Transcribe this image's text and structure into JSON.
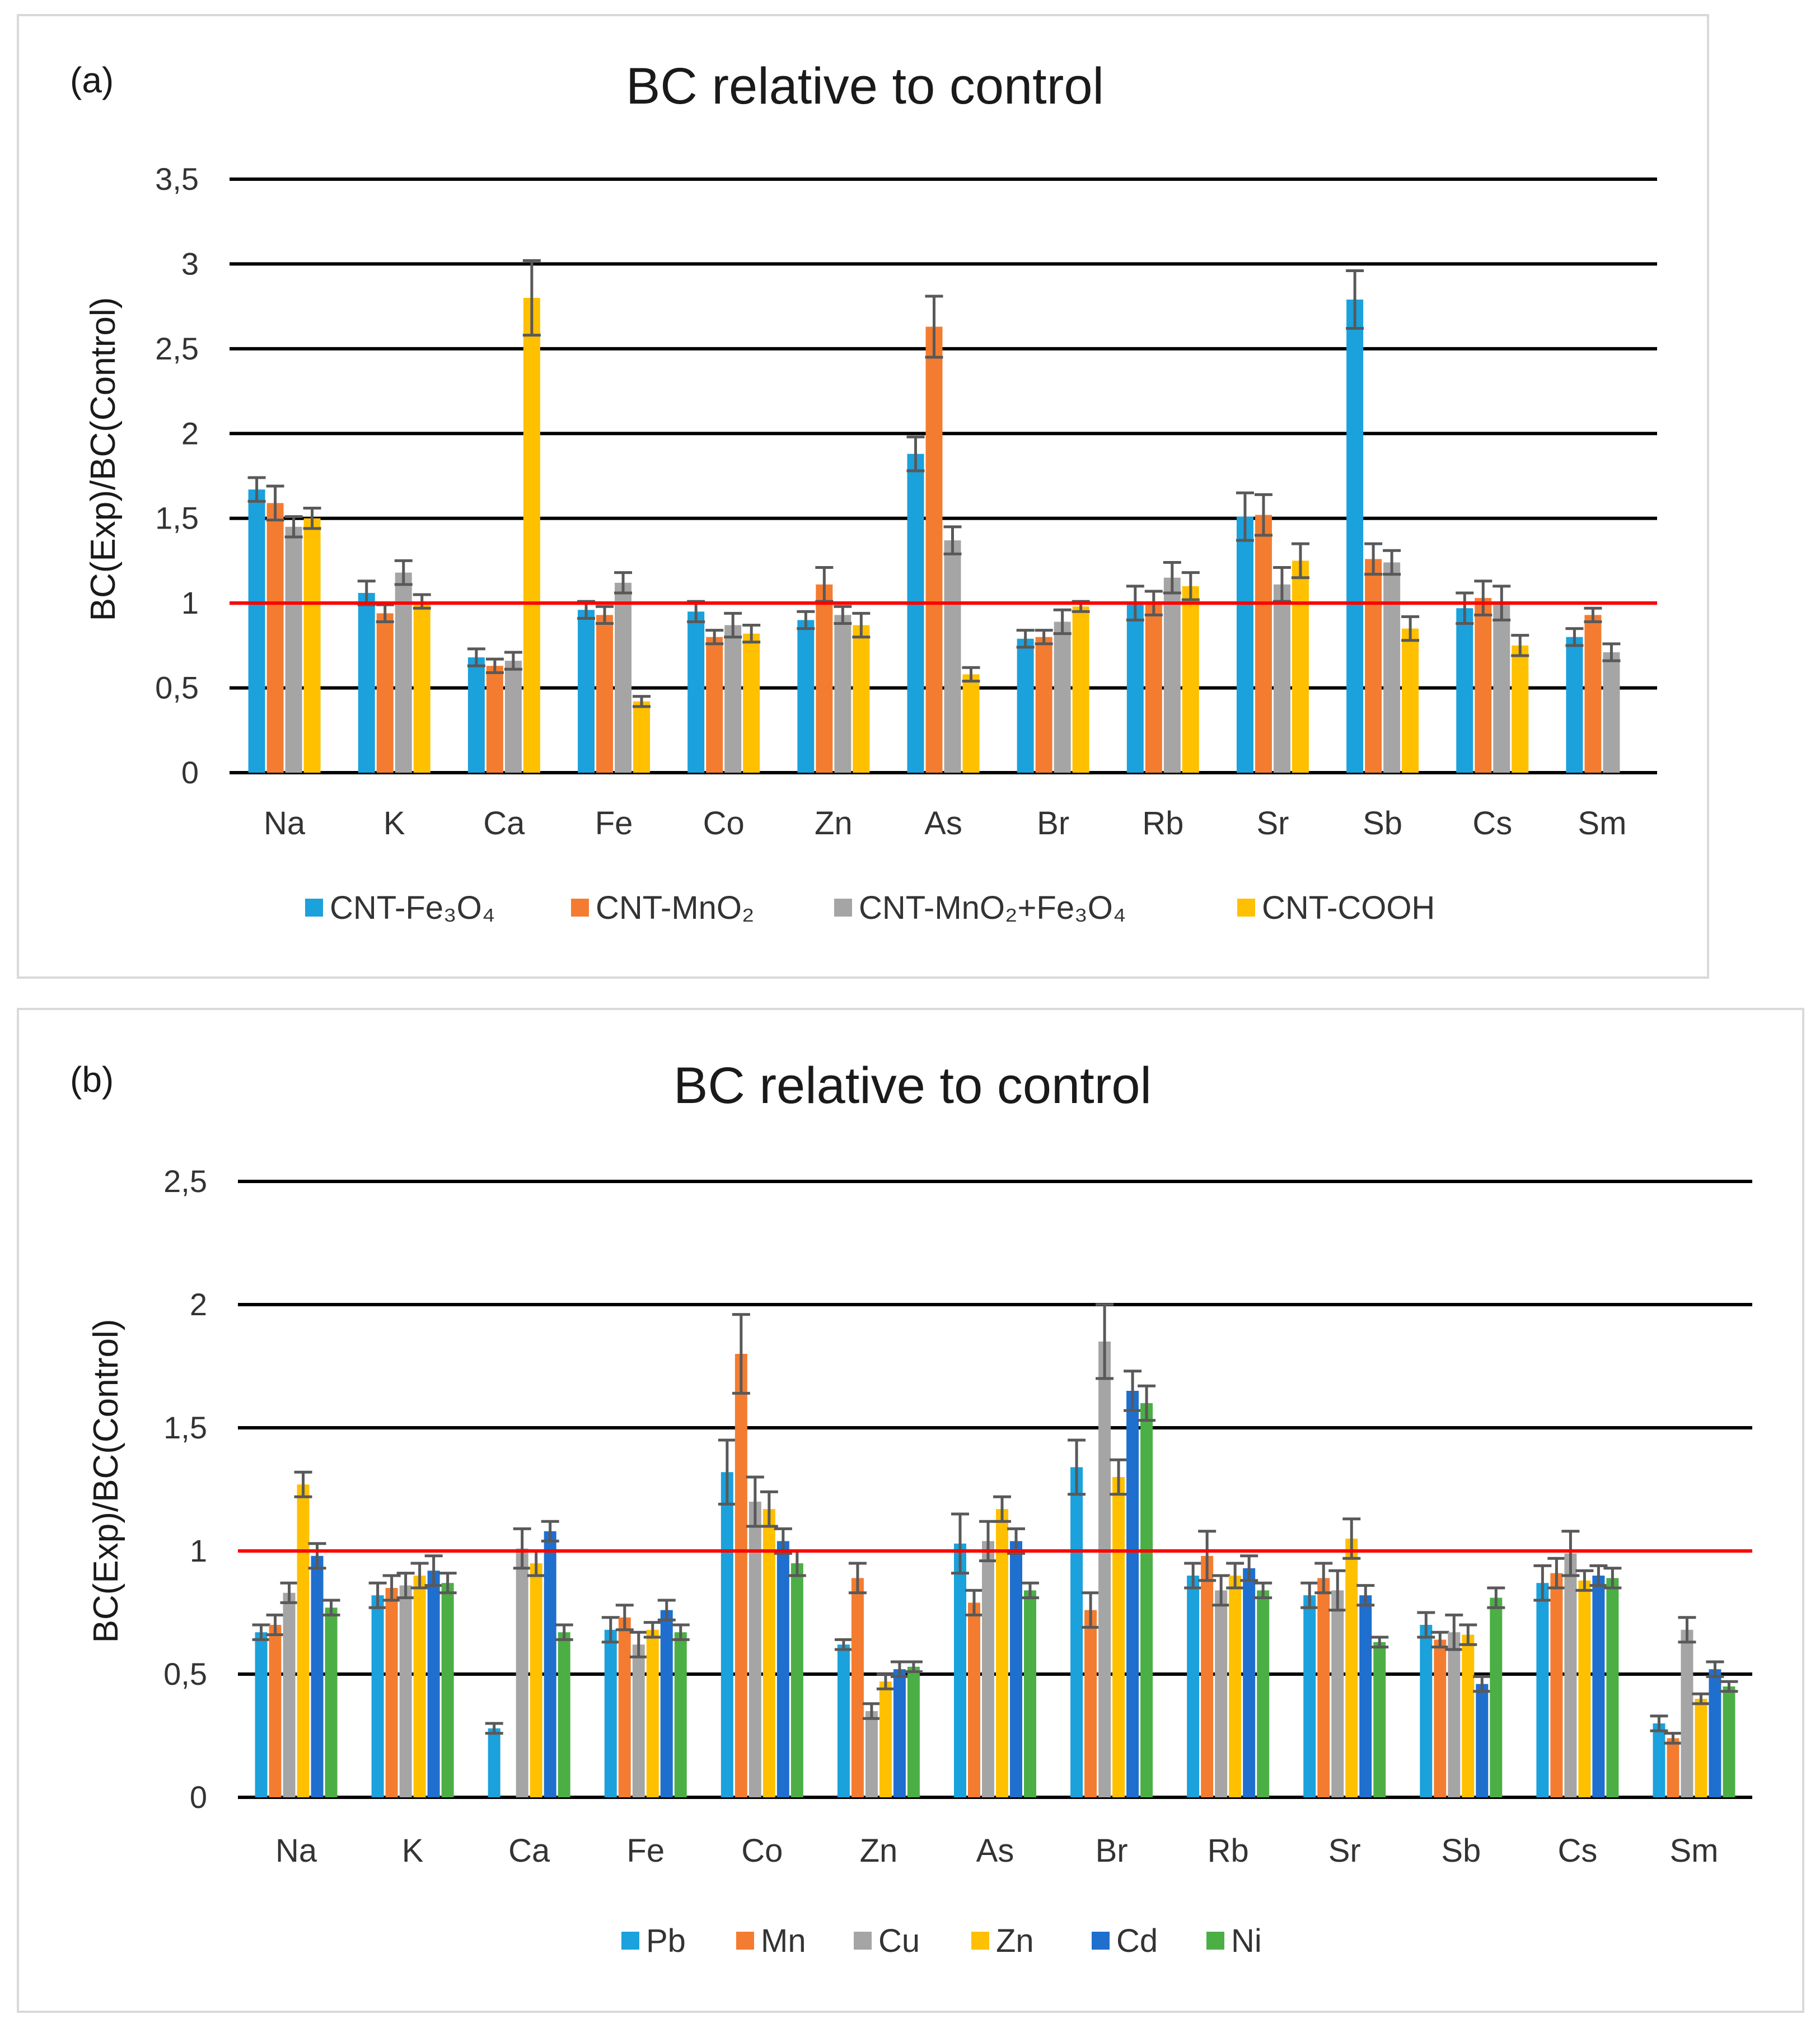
{
  "charts": {
    "a": {
      "panel_label": "(a)",
      "chart_data": {
        "type": "bar",
        "title": "BC relative to control",
        "xlabel": "",
        "ylabel": "BC(Exp)/BC(Control)",
        "ylim": [
          0,
          3.5
        ],
        "yticks": [
          "0",
          "0,5",
          "1",
          "1,5",
          "2",
          "2,5",
          "3",
          "3,5"
        ],
        "grid": true,
        "reference_line": 1,
        "reference_color": "#ff0000",
        "legend_position": "bottom",
        "categories": [
          "Na",
          "K",
          "Ca",
          "Fe",
          "Co",
          "Zn",
          "As",
          "Br",
          "Rb",
          "Sr",
          "Sb",
          "Cs",
          "Sm"
        ],
        "series": [
          {
            "name": "CNT-Fe₃O₄",
            "color": "#1ba1dc",
            "values": [
              1.67,
              1.06,
              0.68,
              0.96,
              0.95,
              0.9,
              1.88,
              0.79,
              1.0,
              1.51,
              2.79,
              0.97,
              0.8
            ],
            "errors": [
              0.07,
              0.07,
              0.05,
              0.05,
              0.06,
              0.05,
              0.1,
              0.05,
              0.1,
              0.14,
              0.17,
              0.09,
              0.05
            ]
          },
          {
            "name": "CNT-MnO₂",
            "color": "#f47c30",
            "values": [
              1.59,
              0.94,
              0.63,
              0.93,
              0.8,
              1.11,
              2.63,
              0.8,
              1.0,
              1.52,
              1.26,
              1.03,
              0.93
            ],
            "errors": [
              0.1,
              0.05,
              0.04,
              0.05,
              0.04,
              0.1,
              0.18,
              0.04,
              0.07,
              0.12,
              0.09,
              0.1,
              0.04
            ]
          },
          {
            "name": "CNT-MnO₂+Fe₃O₄",
            "color": "#a5a5a5",
            "values": [
              1.45,
              1.18,
              0.66,
              1.12,
              0.87,
              0.93,
              1.37,
              0.89,
              1.15,
              1.11,
              1.24,
              1.0,
              0.71
            ],
            "errors": [
              0.06,
              0.07,
              0.05,
              0.06,
              0.07,
              0.05,
              0.08,
              0.07,
              0.09,
              0.1,
              0.07,
              0.1,
              0.05
            ]
          },
          {
            "name": "CNT-COOH",
            "color": "#ffc000",
            "values": [
              1.5,
              1.01,
              2.8,
              0.42,
              0.82,
              0.87,
              0.58,
              0.98,
              1.1,
              1.25,
              0.85,
              0.75,
              null
            ],
            "errors": [
              0.06,
              0.04,
              0.22,
              0.03,
              0.05,
              0.07,
              0.04,
              0.03,
              0.08,
              0.1,
              0.07,
              0.06,
              0
            ]
          }
        ]
      }
    },
    "b": {
      "panel_label": "(b)",
      "chart_data": {
        "type": "bar",
        "title": "BC relative to control",
        "xlabel": "",
        "ylabel": "BC(Exp)/BC(Control)",
        "ylim": [
          0,
          2.5
        ],
        "yticks": [
          "0",
          "0,5",
          "1",
          "1,5",
          "2",
          "2,5"
        ],
        "grid": true,
        "reference_line": 1,
        "reference_color": "#ff0000",
        "legend_position": "bottom",
        "categories": [
          "Na",
          "K",
          "Ca",
          "Fe",
          "Co",
          "Zn",
          "As",
          "Br",
          "Rb",
          "Sr",
          "Sb",
          "Cs",
          "Sm"
        ],
        "series": [
          {
            "name": "Pb",
            "color": "#1ba1dc",
            "values": [
              0.67,
              0.82,
              0.28,
              0.68,
              1.32,
              0.62,
              1.03,
              1.34,
              0.9,
              0.82,
              0.7,
              0.87,
              0.3
            ],
            "errors": [
              0.03,
              0.05,
              0.02,
              0.05,
              0.13,
              0.02,
              0.12,
              0.11,
              0.05,
              0.05,
              0.05,
              0.07,
              0.03
            ]
          },
          {
            "name": "Mn",
            "color": "#f47c30",
            "values": [
              0.7,
              0.85,
              null,
              0.73,
              1.8,
              0.89,
              0.79,
              0.76,
              0.98,
              0.89,
              0.64,
              0.91,
              0.24
            ],
            "errors": [
              0.04,
              0.05,
              0,
              0.05,
              0.16,
              0.06,
              0.05,
              0.07,
              0.1,
              0.06,
              0.03,
              0.06,
              0.02
            ]
          },
          {
            "name": "Cu",
            "color": "#a5a5a5",
            "values": [
              0.83,
              0.86,
              1.01,
              0.62,
              1.2,
              0.35,
              1.04,
              1.85,
              0.84,
              0.84,
              0.67,
              0.99,
              0.68
            ],
            "errors": [
              0.04,
              0.05,
              0.08,
              0.05,
              0.1,
              0.03,
              0.08,
              0.15,
              0.06,
              0.08,
              0.07,
              0.09,
              0.05
            ]
          },
          {
            "name": "Zn",
            "color": "#ffc000",
            "values": [
              1.27,
              0.9,
              0.95,
              0.68,
              1.17,
              0.47,
              1.17,
              1.3,
              0.9,
              1.05,
              0.66,
              0.88,
              0.4
            ],
            "errors": [
              0.05,
              0.05,
              0.05,
              0.03,
              0.07,
              0.03,
              0.05,
              0.07,
              0.05,
              0.08,
              0.04,
              0.04,
              0.02
            ]
          },
          {
            "name": "Cd",
            "color": "#1f6fcf",
            "values": [
              0.98,
              0.92,
              1.08,
              0.76,
              1.04,
              0.52,
              1.04,
              1.65,
              0.93,
              0.82,
              0.46,
              0.9,
              0.52
            ],
            "errors": [
              0.05,
              0.06,
              0.04,
              0.04,
              0.05,
              0.03,
              0.05,
              0.08,
              0.05,
              0.04,
              0.03,
              0.04,
              0.03
            ]
          },
          {
            "name": "Ni",
            "color": "#4caf45",
            "values": [
              0.77,
              0.87,
              0.67,
              0.67,
              0.95,
              0.53,
              0.84,
              1.6,
              0.84,
              0.63,
              0.81,
              0.89,
              0.45
            ],
            "errors": [
              0.03,
              0.04,
              0.03,
              0.03,
              0.05,
              0.02,
              0.03,
              0.07,
              0.03,
              0.02,
              0.04,
              0.04,
              0.02
            ]
          }
        ]
      }
    }
  }
}
